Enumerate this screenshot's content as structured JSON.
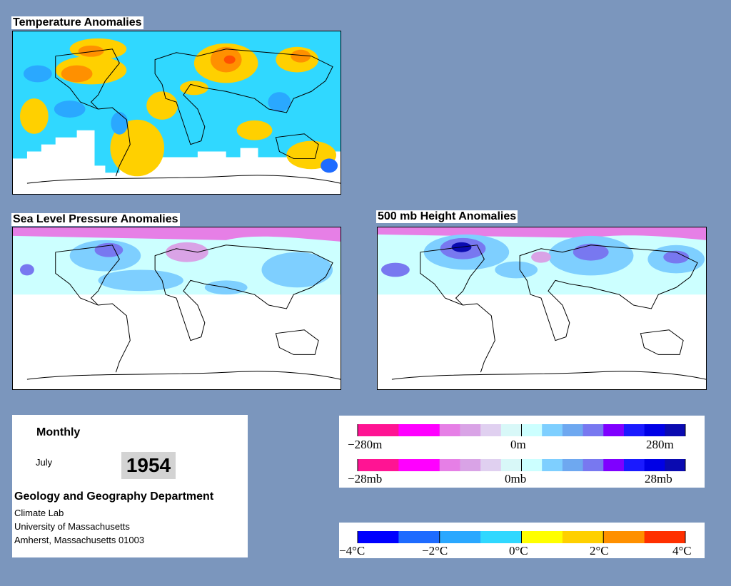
{
  "panels": {
    "temperature": {
      "title": "Temperature Anomalies"
    },
    "slp": {
      "title": "Sea Level Pressure Anomalies"
    },
    "height": {
      "title": "500 mb Height Anomalies"
    }
  },
  "info": {
    "frequency": "Monthly",
    "month": "July",
    "year": "1954",
    "department": "Geology and Geography Department",
    "lines": [
      "Climate Lab",
      "University of Massachusetts",
      "Amherst, Massachusetts 01003"
    ]
  },
  "legends": {
    "height": {
      "min": "−280m",
      "mid": "0m",
      "max": "280m"
    },
    "pressure": {
      "min": "−28mb",
      "mid": "0mb",
      "max": "28mb"
    },
    "temperature": {
      "labels": [
        "−4°C",
        "−2°C",
        "0°C",
        "2°C",
        "4°C"
      ]
    }
  },
  "colors": {
    "background": "#7b96bd",
    "pressure_scale": [
      "#ff1493",
      "#ff1493",
      "#ff00ff",
      "#ff00ff",
      "#e67fe6",
      "#d9a3e6",
      "#e0d0f0",
      "#d8f8f8",
      "#ccffff",
      "#7ecfff",
      "#6ea8f0",
      "#7878f0",
      "#7f00ff",
      "#1a1aff",
      "#0000e6",
      "#0a0ab0"
    ],
    "temperature_scale": [
      "#0000ff",
      "#1e6bff",
      "#2aa8ff",
      "#30d8ff",
      "#ffff00",
      "#ffd000",
      "#ff9000",
      "#ff3000"
    ]
  }
}
